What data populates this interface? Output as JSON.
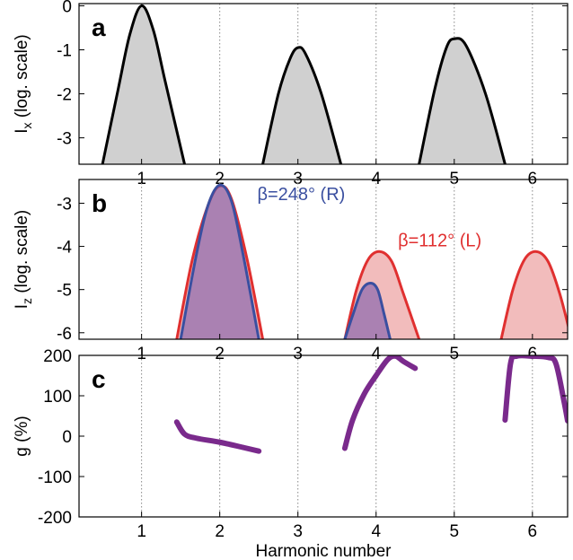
{
  "chart_data": [
    {
      "type": "area",
      "panel_letter": "a",
      "ylabel_main": "I",
      "ylabel_sub": "x",
      "ylabel_rest": " (log. scale)",
      "xlim": [
        0.2,
        6.45
      ],
      "ylim": [
        -3.6,
        0.05
      ],
      "yticks": [
        0,
        -1,
        -2,
        -3
      ],
      "ytick_labels": [
        "0",
        "-1",
        "-2",
        "-3"
      ],
      "xticks": [
        1,
        2,
        3,
        4,
        5,
        6
      ],
      "xtick_labels": [
        "1",
        "2",
        "3",
        "4",
        "5",
        "6"
      ],
      "grid_x": true,
      "series": [
        {
          "color": "#000000",
          "fill": "#d0d0d0",
          "segments": [
            {
              "x": [
                0.5,
                0.7,
                0.85,
                1.0,
                1.15,
                1.3,
                1.55
              ],
              "y": [
                -3.6,
                -1.9,
                -0.65,
                0.0,
                -0.55,
                -1.7,
                -3.6
              ]
            },
            {
              "x": [
                2.55,
                2.75,
                2.9,
                3.0,
                3.1,
                3.3,
                3.55
              ],
              "y": [
                -3.6,
                -2.0,
                -1.2,
                -0.95,
                -1.1,
                -2.0,
                -3.6
              ]
            },
            {
              "x": [
                4.55,
                4.75,
                4.9,
                5.0,
                5.15,
                5.4,
                5.65
              ],
              "y": [
                -3.6,
                -1.9,
                -0.95,
                -0.75,
                -0.9,
                -2.0,
                -3.6
              ]
            }
          ]
        }
      ]
    },
    {
      "type": "area",
      "panel_letter": "b",
      "ylabel_main": "I",
      "ylabel_sub": "z",
      "ylabel_rest": " (log. scale)",
      "xlim": [
        0.2,
        6.45
      ],
      "ylim": [
        -6.15,
        -2.45
      ],
      "yticks": [
        -3,
        -4,
        -5,
        -6
      ],
      "ytick_labels": [
        "-3",
        "-4",
        "-5",
        "-6"
      ],
      "xticks": [
        1,
        2,
        3,
        4,
        5,
        6
      ],
      "xtick_labels": [
        "1",
        "2",
        "3",
        "4",
        "5",
        "6"
      ],
      "grid_x": true,
      "annotations": [
        {
          "text": "β=248° (R)",
          "x": 2.48,
          "y": -2.93,
          "color": "#3a4fa0"
        },
        {
          "text": "β=112° (L)",
          "x": 4.28,
          "y": -4.0,
          "color": "#e03030"
        }
      ],
      "series": [
        {
          "name_ref": "β=112° (L)",
          "color": "#e03030",
          "fill": "#f2bcbc",
          "segments": [
            {
              "x": [
                1.45,
                1.65,
                1.85,
                2.0,
                2.15,
                2.35,
                2.55
              ],
              "y": [
                -6.15,
                -4.3,
                -3.05,
                -2.6,
                -2.9,
                -4.3,
                -6.15
              ]
            },
            {
              "x": [
                3.6,
                3.75,
                3.9,
                4.05,
                4.2,
                4.35,
                4.55
              ],
              "y": [
                -6.15,
                -5.0,
                -4.3,
                -4.12,
                -4.35,
                -5.1,
                -6.15
              ]
            },
            {
              "x": [
                5.6,
                5.75,
                5.9,
                6.05,
                6.2,
                6.35,
                6.5
              ],
              "y": [
                -6.15,
                -5.0,
                -4.3,
                -4.12,
                -4.35,
                -5.1,
                -6.15
              ]
            }
          ]
        },
        {
          "name_ref": "β=248° (R)",
          "color": "#3a4fa0",
          "fill": "rgba(112,80,170,0.55)",
          "segments": [
            {
              "x": [
                1.5,
                1.7,
                1.85,
                2.0,
                2.15,
                2.3,
                2.5
              ],
              "y": [
                -6.15,
                -4.2,
                -3.05,
                -2.58,
                -2.95,
                -4.2,
                -6.15
              ]
            },
            {
              "x": [
                3.6,
                3.7,
                3.82,
                3.93,
                4.02,
                4.1,
                4.18
              ],
              "y": [
                -6.15,
                -5.6,
                -5.0,
                -4.85,
                -5.0,
                -5.55,
                -6.15
              ]
            }
          ]
        }
      ]
    },
    {
      "type": "line",
      "panel_letter": "c",
      "ylabel_main": "g (%)",
      "xlabel": "Harmonic number",
      "xlim": [
        0.2,
        6.45
      ],
      "ylim": [
        -200,
        200
      ],
      "yticks": [
        200,
        100,
        0,
        -100,
        -200
      ],
      "ytick_labels": [
        "200",
        "100",
        "0",
        "-100",
        "-200"
      ],
      "xticks": [
        1,
        2,
        3,
        4,
        5,
        6
      ],
      "xtick_labels": [
        "1",
        "2",
        "3",
        "4",
        "5",
        "6"
      ],
      "grid_x": true,
      "series": [
        {
          "color": "#7a2a8c",
          "segments": [
            {
              "x": [
                1.45,
                1.55,
                1.7,
                2.0,
                2.3,
                2.5
              ],
              "y": [
                35,
                5,
                -5,
                -15,
                -28,
                -37
              ]
            },
            {
              "x": [
                3.6,
                3.7,
                3.85,
                4.0,
                4.15,
                4.25,
                4.35,
                4.5
              ],
              "y": [
                -30,
                40,
                105,
                150,
                190,
                198,
                185,
                168
              ]
            },
            {
              "x": [
                5.65,
                5.72,
                5.8,
                6.0,
                6.2,
                6.3,
                6.4,
                6.45
              ],
              "y": [
                40,
                180,
                198,
                198,
                195,
                180,
                90,
                38
              ]
            }
          ]
        }
      ]
    }
  ]
}
